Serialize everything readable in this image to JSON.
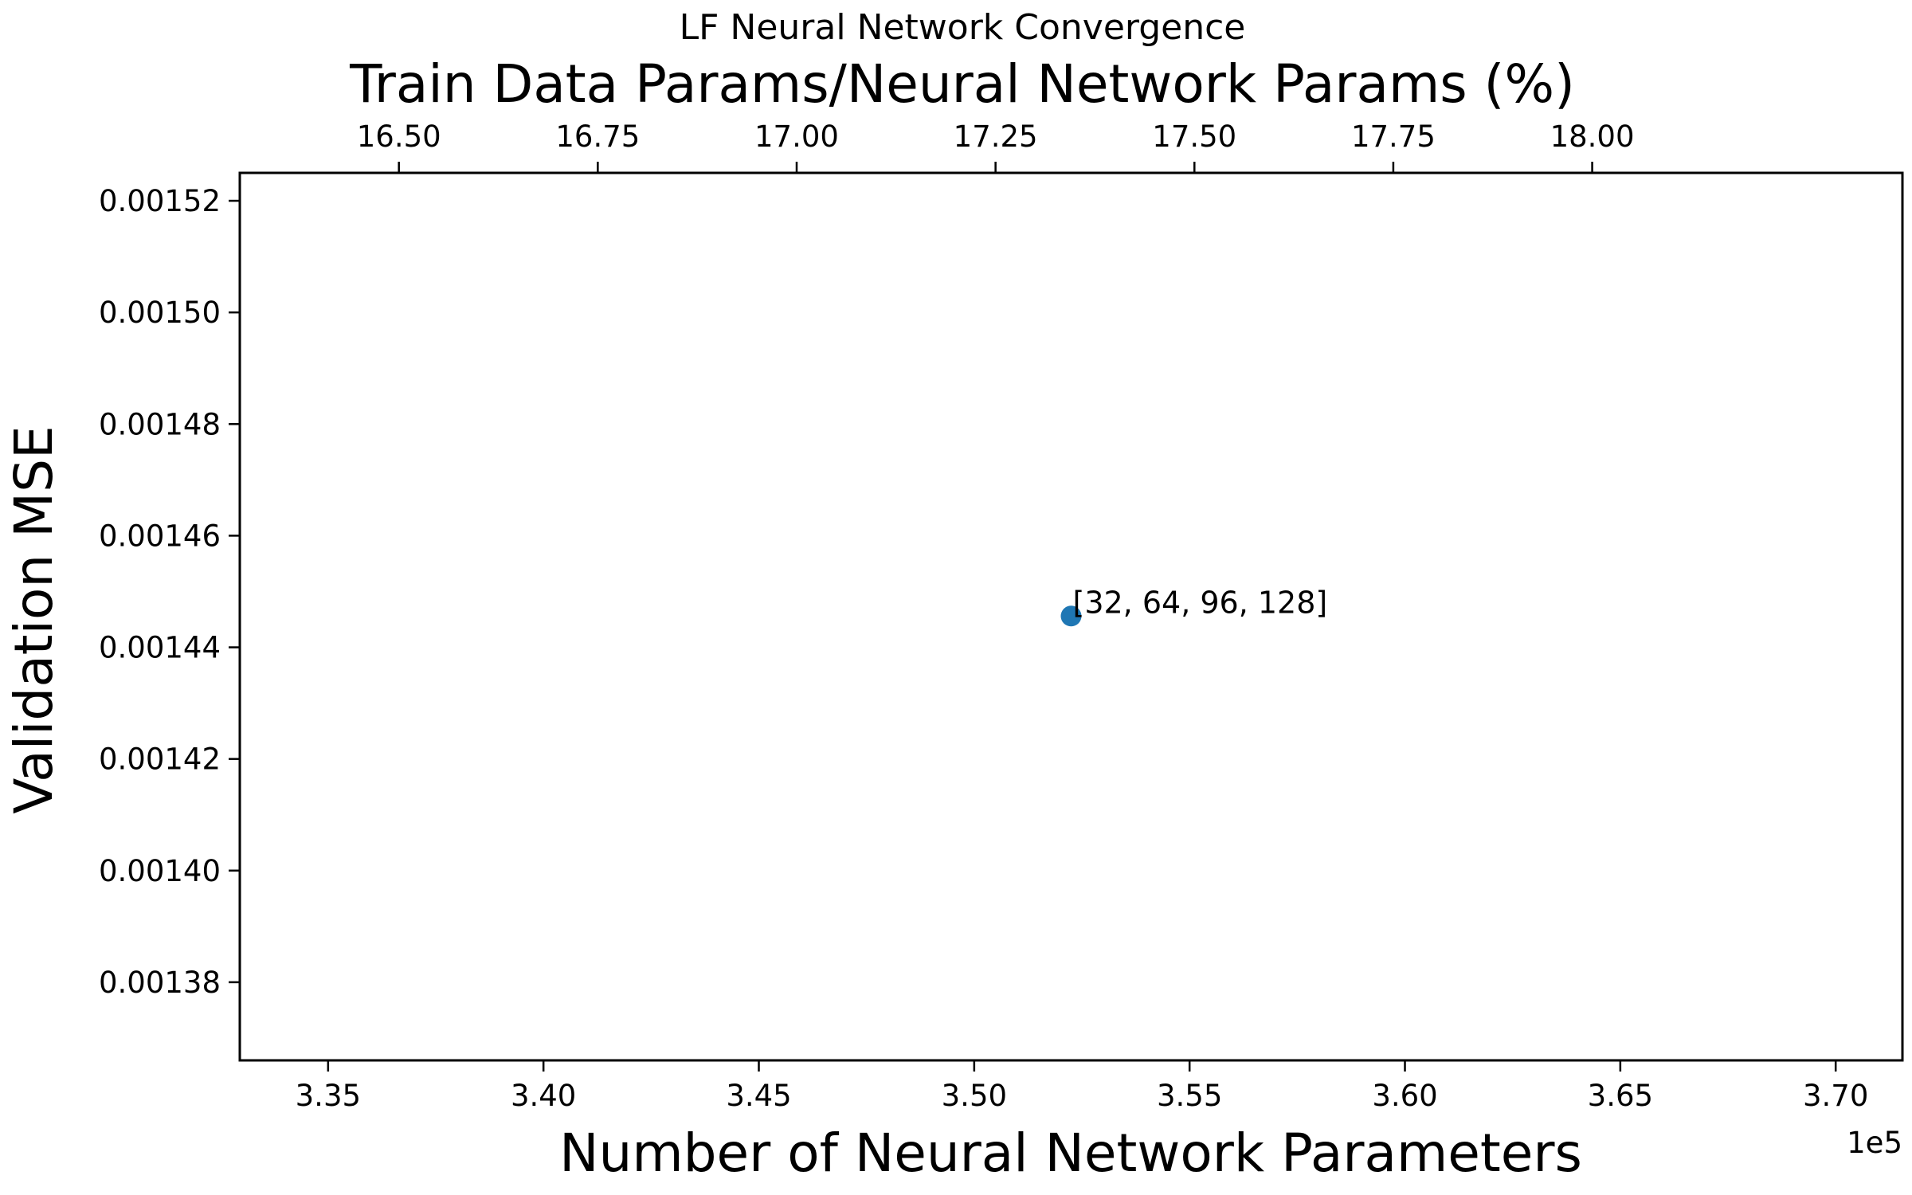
{
  "chart_data": {
    "type": "scatter",
    "title": "LF Neural Network Convergence",
    "xlabel": "Number of Neural Network Parameters",
    "ylabel": "Validation MSE",
    "x2label": "Train Data Params/Neural Network Params (%)",
    "x_offset_label": "1e5",
    "xlim": [
      3.3295,
      3.7155
    ],
    "ylim": [
      0.001366,
      0.001525
    ],
    "x2lim": [
      16.3,
      18.39
    ],
    "xticks": [
      3.35,
      3.4,
      3.45,
      3.5,
      3.55,
      3.6,
      3.65,
      3.7
    ],
    "xtick_labels": [
      "3.35",
      "3.40",
      "3.45",
      "3.50",
      "3.55",
      "3.60",
      "3.65",
      "3.70"
    ],
    "yticks": [
      0.00138,
      0.0014,
      0.00142,
      0.00144,
      0.00146,
      0.00148,
      0.0015,
      0.00152
    ],
    "ytick_labels": [
      "0.00138",
      "0.00140",
      "0.00142",
      "0.00144",
      "0.00146",
      "0.00148",
      "0.00150",
      "0.00152"
    ],
    "x2ticks": [
      16.5,
      16.75,
      17.0,
      17.25,
      17.5,
      17.75,
      18.0
    ],
    "x2tick_labels": [
      "16.50",
      "16.75",
      "17.00",
      "17.25",
      "17.50",
      "17.75",
      "18.00"
    ],
    "grid": false,
    "point_color": "#1f77b4",
    "points": [
      {
        "x": 3.5225,
        "y": 0.0014456,
        "label": "[32, 64, 96, 128]"
      }
    ]
  }
}
